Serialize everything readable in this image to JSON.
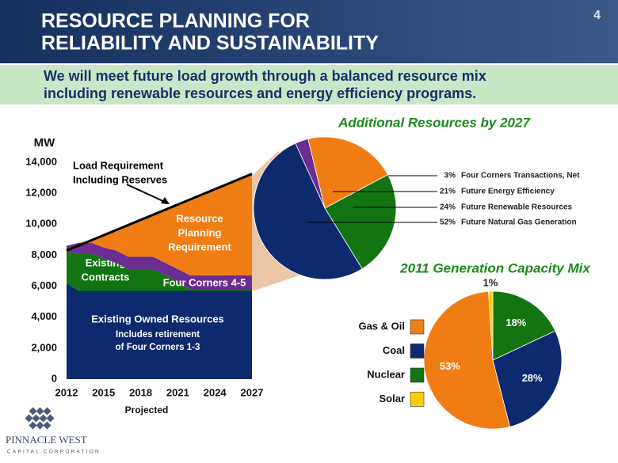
{
  "header": {
    "title": [
      "RESOURCE PLANNING FOR",
      "RELIABILITY AND SUSTAINABILITY"
    ],
    "page_number": "4"
  },
  "banner": [
    "We will meet future load growth through a balanced resource mix",
    "including renewable resources and energy efficiency programs."
  ],
  "logo": {
    "name": "PINNACLE WEST",
    "tagline": "CAPITAL CORPORATION"
  },
  "chart_data": [
    {
      "type": "area",
      "ylabel": "MW",
      "xlabel": "Projected",
      "x": [
        2012,
        2013,
        2014,
        2015,
        2016,
        2017,
        2018,
        2019,
        2020,
        2021,
        2022,
        2023,
        2024,
        2025,
        2026,
        2027
      ],
      "xlim": [
        2012,
        2027
      ],
      "xticks": [
        2012,
        2015,
        2018,
        2021,
        2024,
        2027
      ],
      "ylim": [
        0,
        14000
      ],
      "yticks": [
        0,
        {
          "value": 2000,
          "label": "2,000"
        },
        {
          "value": 4000,
          "label": "4,000"
        },
        {
          "value": 6000,
          "label": "6,000"
        },
        {
          "value": 8000,
          "label": "8,000"
        },
        {
          "value": 10000,
          "label": "10,000"
        },
        {
          "value": 12000,
          "label": "12,000"
        },
        {
          "value": 14000,
          "label": "14,000"
        }
      ],
      "series": [
        {
          "type": "area",
          "name": [
            "Existing Owned Resources"
          ],
          "note": [
            "Includes retirement",
            "of Four Corners 1-3"
          ],
          "color": "#0d2a6e",
          "values": [
            6200,
            5700,
            5700,
            5700,
            5700,
            5700,
            5700,
            5700,
            5700,
            5700,
            5700,
            5700,
            5700,
            5700,
            5700,
            5700
          ]
        },
        {
          "type": "area",
          "name": [
            "Existing",
            "Contracts"
          ],
          "color": "#137512",
          "values": [
            2000,
            2400,
            2400,
            2100,
            1800,
            1400,
            1400,
            1400,
            1000,
            600,
            100,
            100,
            100,
            100,
            100,
            100
          ]
        },
        {
          "type": "area",
          "name": [
            "Four Corners 4-5"
          ],
          "color": "#6b2d91",
          "values": [
            400,
            700,
            700,
            700,
            800,
            800,
            800,
            800,
            800,
            800,
            900,
            900,
            900,
            900,
            900,
            900
          ]
        },
        {
          "type": "area",
          "name": [
            "Resource",
            "Planning",
            "Requirement"
          ],
          "color": "#f07d14",
          "values": [
            0,
            0,
            160,
            790,
            1320,
            2050,
            2380,
            2710,
            3440,
            4170,
            4900,
            5230,
            5560,
            5890,
            6220,
            6550
          ]
        },
        {
          "type": "line",
          "name": [
            "Load Requirement",
            "Including Reserves"
          ],
          "color": "#000000",
          "values": [
            8300,
            8630,
            8960,
            9290,
            9620,
            9950,
            10280,
            10610,
            10940,
            11270,
            11600,
            11930,
            12260,
            12590,
            12920,
            13250
          ]
        }
      ]
    },
    {
      "type": "pie",
      "title": "Additional Resources by 2027",
      "direction": "clockwise",
      "categories": [
        "Four Corners Transactions, Net",
        "Future Energy Efficiency",
        "Future Renewable Resources",
        "Future Natural Gas Generation"
      ],
      "values": [
        3,
        21,
        24,
        52
      ],
      "value_labels": [
        "3%",
        "21%",
        "24%",
        "52%"
      ],
      "colors": [
        "#6b2d91",
        "#f07d14",
        "#137512",
        "#0d2a6e"
      ]
    },
    {
      "type": "pie",
      "title": "2011 Generation Capacity Mix",
      "direction": "counterclockwise",
      "categories": [
        "Gas & Oil",
        "Coal",
        "Nuclear",
        "Solar"
      ],
      "values": [
        53,
        28,
        18,
        1
      ],
      "value_labels": [
        "53%",
        "28%",
        "18%",
        "1%"
      ],
      "colors": [
        "#f07d14",
        "#0d2a6e",
        "#137512",
        "#ffcc00"
      ]
    }
  ]
}
